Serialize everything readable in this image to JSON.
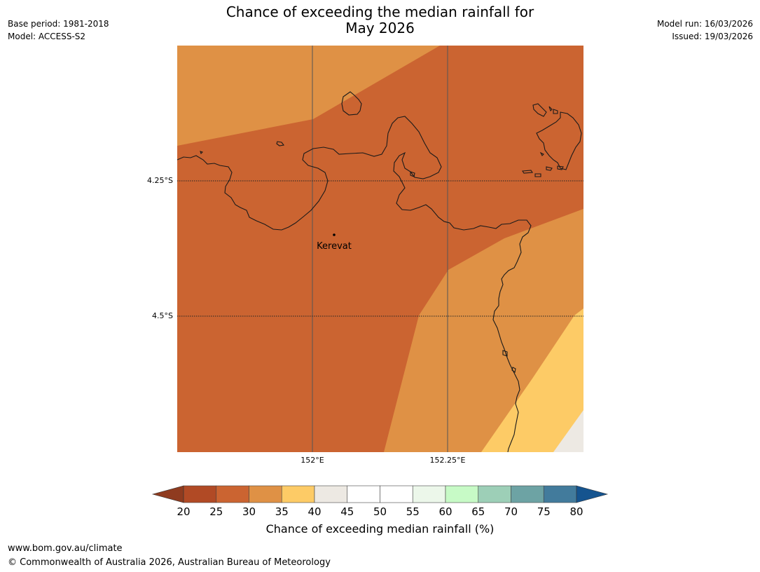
{
  "header": {
    "title_line1": "Chance of exceeding the median rainfall for",
    "title_line2": "May 2026",
    "base_period": "Base period: 1981-2018",
    "model": "Model: ACCESS-S2",
    "model_run": "Model run: 16/03/2026",
    "issued": "Issued: 19/03/2026"
  },
  "map": {
    "latitude_labels": [
      "4.25°S",
      "4.5°S"
    ],
    "longitude_labels": [
      "152°E",
      "152.25°E"
    ],
    "place_name": "Kerevat",
    "colors": {
      "band_25_30": "#cb6431",
      "band_30_35": "#df9145",
      "band_35_40": "#fdcb66",
      "band_40_45": "#ede9e3",
      "coastline": "#1a1a1a"
    }
  },
  "legend": {
    "title": "Chance of exceeding median rainfall (%)",
    "ticks": [
      "20",
      "25",
      "30",
      "35",
      "40",
      "45",
      "50",
      "55",
      "60",
      "65",
      "70",
      "75",
      "80"
    ],
    "colors": [
      "#b14a25",
      "#cb6431",
      "#df9145",
      "#fdcb66",
      "#ede9e3",
      "#ffffff",
      "#ffffff",
      "#ecf7ea",
      "#c7fac6",
      "#9dcfb7",
      "#6da3a4",
      "#427b9c"
    ],
    "under_color": "#8f3b1f",
    "over_color": "#15548f"
  },
  "footer": {
    "website": "www.bom.gov.au/climate",
    "copyright": "© Commonwealth of Australia 2026, Australian Bureau of Meteorology"
  }
}
